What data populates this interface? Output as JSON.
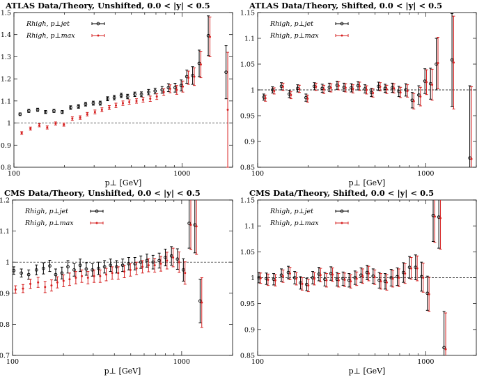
{
  "chart_data": [
    {
      "type": "scatter",
      "title": "ATLAS Data/Theory, Unshifted, 0.0 < |y| < 0.5",
      "xlabel": "p⊥ [GeV]",
      "ylabel": "",
      "xscale": "log",
      "xlim": [
        100,
        2000
      ],
      "ylim": [
        0.8,
        1.5
      ],
      "yticks": [
        0.8,
        0.9,
        1,
        1.1,
        1.2,
        1.3,
        1.4,
        1.5
      ],
      "ytick_labels": [
        "0.8",
        "0.9",
        "1",
        "1.1",
        "1.2",
        "1.3",
        "1.4",
        "1.5"
      ],
      "xtick_labels": [
        "100",
        "1000"
      ],
      "reference_line": 1,
      "legend_position": "top-left",
      "series": [
        {
          "name": "Rhigh, p⊥jet",
          "color": "#000000",
          "x": [
            110,
            124,
            140,
            156,
            175,
            196,
            220,
            245,
            270,
            300,
            330,
            365,
            400,
            440,
            480,
            530,
            580,
            640,
            700,
            770,
            840,
            920,
            1000,
            1080,
            1170,
            1280,
            1450,
            1850
          ],
          "values": [
            1.04,
            1.055,
            1.06,
            1.05,
            1.055,
            1.05,
            1.07,
            1.075,
            1.085,
            1.09,
            1.09,
            1.11,
            1.115,
            1.125,
            1.12,
            1.13,
            1.13,
            1.14,
            1.145,
            1.15,
            1.16,
            1.16,
            1.17,
            1.21,
            1.215,
            1.27,
            1.395,
            1.23
          ],
          "errors": [
            0.006,
            0.007,
            0.007,
            0.007,
            0.007,
            0.007,
            0.008,
            0.008,
            0.008,
            0.009,
            0.009,
            0.009,
            0.01,
            0.01,
            0.01,
            0.01,
            0.011,
            0.012,
            0.013,
            0.015,
            0.018,
            0.02,
            0.025,
            0.03,
            0.04,
            0.06,
            0.09,
            0.12
          ]
        },
        {
          "name": "Rhigh, p⊥max",
          "color": "#d62020",
          "x": [
            110,
            124,
            140,
            156,
            175,
            196,
            220,
            245,
            270,
            300,
            330,
            365,
            400,
            440,
            480,
            530,
            580,
            640,
            700,
            770,
            840,
            920,
            1000,
            1080,
            1170,
            1280,
            1450,
            1850
          ],
          "values": [
            0.955,
            0.975,
            0.99,
            0.98,
            0.998,
            0.993,
            1.02,
            1.025,
            1.04,
            1.05,
            1.06,
            1.07,
            1.08,
            1.09,
            1.095,
            1.1,
            1.105,
            1.11,
            1.12,
            1.14,
            1.155,
            1.15,
            1.165,
            1.205,
            1.21,
            1.265,
            1.39,
            1.06
          ],
          "errors": [
            0.006,
            0.007,
            0.007,
            0.007,
            0.007,
            0.007,
            0.008,
            0.008,
            0.008,
            0.009,
            0.009,
            0.009,
            0.01,
            0.01,
            0.01,
            0.01,
            0.011,
            0.012,
            0.013,
            0.015,
            0.018,
            0.02,
            0.025,
            0.03,
            0.04,
            0.06,
            0.09,
            0.26
          ]
        }
      ]
    },
    {
      "type": "scatter",
      "title": "ATLAS Data/Theory, Shifted, 0.0 < |y| < 0.5",
      "xlabel": "p⊥ [GeV]",
      "ylabel": "",
      "xscale": "log",
      "xlim": [
        100,
        2000
      ],
      "ylim": [
        0.85,
        1.15
      ],
      "yticks": [
        0.85,
        0.9,
        0.95,
        1,
        1.05,
        1.1,
        1.15
      ],
      "ytick_labels": [
        "0.85",
        "0.9",
        "0.95",
        "1",
        "1.05",
        "1.1",
        "1.15"
      ],
      "xtick_labels": [
        "100",
        "1000"
      ],
      "reference_line": 1,
      "legend_position": "top-left",
      "series": [
        {
          "name": "Rhigh, p⊥jet",
          "color": "#000000",
          "x": [
            110,
            124,
            140,
            156,
            175,
            196,
            220,
            245,
            270,
            300,
            330,
            365,
            400,
            440,
            480,
            530,
            580,
            640,
            700,
            770,
            840,
            920,
            1000,
            1080,
            1170,
            1450,
            1850
          ],
          "values": [
            0.986,
            1.0,
            1.007,
            0.992,
            1.003,
            0.985,
            1.007,
            1.003,
            1.005,
            1.009,
            1.005,
            1.004,
            1.008,
            1.002,
            0.995,
            1.007,
            1.003,
            1.004,
            0.997,
            1.0,
            0.98,
            0.99,
            1.017,
            1.012,
            1.05,
            1.058,
            0.868
          ],
          "errors": [
            0.006,
            0.006,
            0.007,
            0.007,
            0.007,
            0.007,
            0.007,
            0.008,
            0.008,
            0.008,
            0.008,
            0.008,
            0.008,
            0.008,
            0.008,
            0.008,
            0.008,
            0.009,
            0.01,
            0.012,
            0.015,
            0.018,
            0.024,
            0.03,
            0.05,
            0.09,
            0.14
          ]
        },
        {
          "name": "Rhigh, p⊥max",
          "color": "#d62020",
          "x": [
            110,
            124,
            140,
            156,
            175,
            196,
            220,
            245,
            270,
            300,
            330,
            365,
            400,
            440,
            480,
            530,
            580,
            640,
            700,
            770,
            840,
            920,
            1000,
            1080,
            1170,
            1450,
            1850
          ],
          "values": [
            0.984,
            0.998,
            1.006,
            0.99,
            1.002,
            0.983,
            1.006,
            1.001,
            1.004,
            1.008,
            1.004,
            1.002,
            1.007,
            1.0,
            0.994,
            1.006,
            1.001,
            1.003,
            0.995,
            0.998,
            0.978,
            0.987,
            1.015,
            1.01,
            1.052,
            1.053,
            0.866
          ],
          "errors": [
            0.006,
            0.006,
            0.007,
            0.007,
            0.007,
            0.007,
            0.007,
            0.008,
            0.008,
            0.008,
            0.008,
            0.008,
            0.008,
            0.008,
            0.008,
            0.008,
            0.008,
            0.009,
            0.01,
            0.012,
            0.015,
            0.018,
            0.024,
            0.03,
            0.05,
            0.09,
            0.14
          ]
        }
      ]
    },
    {
      "type": "scatter",
      "title": "CMS Data/Theory, Unshifted, 0.0 < |y| < 0.5",
      "xlabel": "p⊥ [GeV]",
      "ylabel": "",
      "xscale": "log",
      "xlim": [
        100,
        2000
      ],
      "ylim": [
        0.7,
        1.2
      ],
      "yticks": [
        0.7,
        0.8,
        0.9,
        1,
        1.1,
        1.2
      ],
      "ytick_labels": [
        "0.7",
        "0.8",
        "0.9",
        "1",
        "1.1",
        "1.2"
      ],
      "xtick_labels": [
        "100",
        "1000"
      ],
      "reference_line": 1,
      "legend_position": "top-left",
      "series": [
        {
          "name": "Rhigh, p⊥jet",
          "color": "#000000",
          "x": [
            103,
            114,
            126,
            140,
            154,
            168,
            182,
            198,
            215,
            234,
            254,
            276,
            300,
            326,
            354,
            384,
            417,
            453,
            492,
            535,
            580,
            630,
            685,
            745,
            810,
            880,
            955,
            1035,
            1120,
            1210,
            1300
          ],
          "values": [
            0.973,
            0.965,
            0.96,
            0.975,
            0.98,
            0.988,
            0.96,
            0.965,
            0.985,
            0.975,
            0.99,
            0.978,
            0.975,
            0.98,
            0.985,
            0.99,
            0.985,
            0.99,
            0.995,
            0.995,
            1.0,
            1.005,
            1.0,
            1.005,
            1.015,
            1.02,
            1.01,
            0.975,
            1.125,
            1.12,
            0.875
          ],
          "errors": [
            0.012,
            0.013,
            0.015,
            0.016,
            0.018,
            0.018,
            0.018,
            0.019,
            0.02,
            0.02,
            0.02,
            0.02,
            0.02,
            0.02,
            0.02,
            0.02,
            0.02,
            0.02,
            0.02,
            0.02,
            0.02,
            0.021,
            0.022,
            0.024,
            0.027,
            0.03,
            0.033,
            0.036,
            0.08,
            0.09,
            0.07
          ]
        },
        {
          "name": "Rhigh, p⊥max",
          "color": "#d62020",
          "x": [
            103,
            114,
            126,
            140,
            154,
            168,
            182,
            198,
            215,
            234,
            254,
            276,
            300,
            326,
            354,
            384,
            417,
            453,
            492,
            535,
            580,
            630,
            685,
            745,
            810,
            880,
            955,
            1035,
            1120,
            1210,
            1300
          ],
          "values": [
            0.912,
            0.915,
            0.93,
            0.935,
            0.92,
            0.925,
            0.935,
            0.94,
            0.945,
            0.95,
            0.955,
            0.95,
            0.955,
            0.955,
            0.96,
            0.965,
            0.965,
            0.97,
            0.975,
            0.98,
            0.985,
            0.99,
            0.99,
            0.995,
            1.005,
            1.015,
            1.0,
            0.965,
            1.12,
            1.115,
            0.87
          ],
          "errors": [
            0.012,
            0.013,
            0.015,
            0.016,
            0.018,
            0.018,
            0.018,
            0.019,
            0.02,
            0.02,
            0.02,
            0.02,
            0.02,
            0.02,
            0.02,
            0.02,
            0.02,
            0.02,
            0.02,
            0.02,
            0.02,
            0.021,
            0.022,
            0.024,
            0.027,
            0.03,
            0.033,
            0.036,
            0.08,
            0.09,
            0.08
          ]
        }
      ]
    },
    {
      "type": "scatter",
      "title": "CMS Data/Theory, Shifted, 0.0 < |y| < 0.5",
      "xlabel": "p⊥ [GeV]",
      "ylabel": "",
      "xscale": "log",
      "xlim": [
        100,
        2000
      ],
      "ylim": [
        0.85,
        1.15
      ],
      "yticks": [
        0.85,
        0.9,
        0.95,
        1,
        1.05,
        1.1,
        1.15
      ],
      "ytick_labels": [
        "0.85",
        "0.9",
        "0.95",
        "1",
        "1.05",
        "1.1",
        "1.15"
      ],
      "xtick_labels": [
        "100",
        "1000"
      ],
      "reference_line": 1,
      "legend_position": "top-left",
      "series": [
        {
          "name": "Rhigh, p⊥jet",
          "color": "#000000",
          "x": [
            103,
            114,
            126,
            140,
            154,
            168,
            182,
            198,
            215,
            234,
            254,
            276,
            300,
            326,
            354,
            384,
            417,
            453,
            492,
            535,
            580,
            630,
            685,
            745,
            810,
            880,
            955,
            1035,
            1120,
            1210,
            1300
          ],
          "values": [
            1.0,
            0.998,
            0.997,
            1.005,
            1.01,
            1.0,
            0.99,
            0.987,
            1.0,
            1.007,
            0.997,
            1.008,
            0.997,
            0.998,
            0.995,
            1.0,
            1.005,
            1.01,
            1.003,
            0.995,
            0.993,
            1.0,
            1.002,
            1.01,
            1.02,
            1.02,
            1.002,
            0.97,
            1.12,
            1.117,
            0.865
          ],
          "errors": [
            0.01,
            0.011,
            0.011,
            0.012,
            0.012,
            0.012,
            0.012,
            0.012,
            0.012,
            0.013,
            0.013,
            0.013,
            0.013,
            0.013,
            0.013,
            0.013,
            0.014,
            0.014,
            0.014,
            0.015,
            0.015,
            0.016,
            0.017,
            0.019,
            0.021,
            0.024,
            0.028,
            0.033,
            0.05,
            0.06,
            0.07
          ]
        },
        {
          "name": "Rhigh, p⊥max",
          "color": "#d62020",
          "x": [
            103,
            114,
            126,
            140,
            154,
            168,
            182,
            198,
            215,
            234,
            254,
            276,
            300,
            326,
            354,
            384,
            417,
            453,
            492,
            535,
            580,
            630,
            685,
            745,
            810,
            880,
            955,
            1035,
            1120,
            1210,
            1300
          ],
          "values": [
            0.999,
            0.996,
            0.995,
            1.003,
            1.008,
            0.998,
            0.988,
            0.985,
            0.998,
            1.005,
            0.995,
            1.006,
            0.995,
            0.996,
            0.993,
            0.998,
            1.003,
            1.008,
            1.001,
            0.993,
            0.991,
            0.998,
            1.0,
            1.008,
            1.018,
            1.018,
            1.0,
            0.968,
            1.118,
            1.115,
            0.862
          ],
          "errors": [
            0.01,
            0.011,
            0.011,
            0.012,
            0.012,
            0.012,
            0.012,
            0.012,
            0.012,
            0.013,
            0.013,
            0.013,
            0.013,
            0.013,
            0.013,
            0.013,
            0.014,
            0.014,
            0.014,
            0.015,
            0.015,
            0.016,
            0.017,
            0.019,
            0.021,
            0.024,
            0.028,
            0.033,
            0.05,
            0.06,
            0.07
          ]
        }
      ]
    }
  ]
}
